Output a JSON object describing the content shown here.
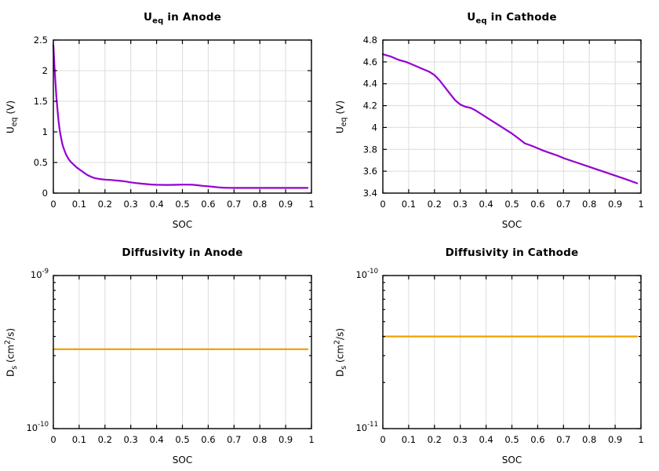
{
  "page": {
    "background": "#ffffff"
  },
  "colors": {
    "purple": "#9400d3",
    "orange": "#f0a202",
    "grid": "#dcdcdc",
    "axis": "#000000",
    "background": "#ffffff"
  },
  "chart_data": [
    {
      "type": "line",
      "title_text": "U_eq in Anode",
      "title": {
        "p1": "U",
        "sub": "eq",
        "p2": " in Anode"
      },
      "xlabel": "SOC",
      "ylabel_text": "U_eq (V)",
      "ylabel": {
        "p1": "U",
        "sub": "eq",
        "p2": " (V)",
        "sup": "",
        "p3": ""
      },
      "grid": true,
      "x": {
        "min": 0,
        "max": 1,
        "tick_values": [
          0,
          0.1,
          0.2,
          0.3,
          0.4,
          0.5,
          0.6,
          0.7,
          0.8,
          0.9,
          1
        ],
        "tick_labels": [
          "0",
          "0.1",
          "0.2",
          "0.3",
          "0.4",
          "0.5",
          "0.6",
          "0.7",
          "0.8",
          "0.9",
          "1"
        ]
      },
      "y": {
        "scale": "linear",
        "min": 0,
        "max": 2.5,
        "tick_values": [
          0,
          0.5,
          1,
          1.5,
          2,
          2.5
        ],
        "tick_labels": [
          "0",
          "0.5",
          "1",
          "1.5",
          "2",
          "2.5"
        ]
      },
      "series": [
        {
          "name": "equilibrium-potential-anode",
          "color_key": "purple",
          "points": [
            [
              0,
              2.42
            ],
            [
              0.004,
              2.1
            ],
            [
              0.008,
              1.82
            ],
            [
              0.012,
              1.56
            ],
            [
              0.016,
              1.36
            ],
            [
              0.02,
              1.18
            ],
            [
              0.025,
              1.02
            ],
            [
              0.03,
              0.9
            ],
            [
              0.035,
              0.8
            ],
            [
              0.04,
              0.73
            ],
            [
              0.05,
              0.62
            ],
            [
              0.06,
              0.55
            ],
            [
              0.07,
              0.5
            ],
            [
              0.08,
              0.46
            ],
            [
              0.09,
              0.42
            ],
            [
              0.1,
              0.39
            ],
            [
              0.11,
              0.36
            ],
            [
              0.12,
              0.33
            ],
            [
              0.13,
              0.3
            ],
            [
              0.14,
              0.28
            ],
            [
              0.15,
              0.26
            ],
            [
              0.16,
              0.245
            ],
            [
              0.18,
              0.23
            ],
            [
              0.2,
              0.22
            ],
            [
              0.22,
              0.215
            ],
            [
              0.24,
              0.208
            ],
            [
              0.26,
              0.2
            ],
            [
              0.28,
              0.19
            ],
            [
              0.3,
              0.176
            ],
            [
              0.32,
              0.164
            ],
            [
              0.34,
              0.155
            ],
            [
              0.36,
              0.147
            ],
            [
              0.38,
              0.14
            ],
            [
              0.4,
              0.136
            ],
            [
              0.42,
              0.134
            ],
            [
              0.44,
              0.133
            ],
            [
              0.46,
              0.134
            ],
            [
              0.48,
              0.136
            ],
            [
              0.5,
              0.139
            ],
            [
              0.52,
              0.139
            ],
            [
              0.54,
              0.136
            ],
            [
              0.56,
              0.128
            ],
            [
              0.58,
              0.118
            ],
            [
              0.6,
              0.112
            ],
            [
              0.62,
              0.102
            ],
            [
              0.64,
              0.093
            ],
            [
              0.66,
              0.088
            ],
            [
              0.68,
              0.086
            ],
            [
              0.7,
              0.085
            ],
            [
              0.75,
              0.084
            ],
            [
              0.8,
              0.084
            ],
            [
              0.85,
              0.084
            ],
            [
              0.9,
              0.084
            ],
            [
              0.95,
              0.084
            ],
            [
              0.985,
              0.084
            ]
          ]
        }
      ]
    },
    {
      "type": "line",
      "title_text": "U_eq in Cathode",
      "title": {
        "p1": "U",
        "sub": "eq",
        "p2": " in Cathode"
      },
      "xlabel": "SOC",
      "ylabel_text": "U_eq (V)",
      "ylabel": {
        "p1": "U",
        "sub": "eq",
        "p2": " (V)",
        "sup": "",
        "p3": ""
      },
      "grid": true,
      "x": {
        "min": 0,
        "max": 1,
        "tick_values": [
          0,
          0.1,
          0.2,
          0.3,
          0.4,
          0.5,
          0.6,
          0.7,
          0.8,
          0.9,
          1
        ],
        "tick_labels": [
          "0",
          "0.1",
          "0.2",
          "0.3",
          "0.4",
          "0.5",
          "0.6",
          "0.7",
          "0.8",
          "0.9",
          "1"
        ]
      },
      "y": {
        "scale": "linear",
        "min": 3.4,
        "max": 4.8,
        "tick_values": [
          3.4,
          3.6,
          3.8,
          4,
          4.2,
          4.4,
          4.6,
          4.8
        ],
        "tick_labels": [
          "3.4",
          "3.6",
          "3.8",
          "4",
          "4.2",
          "4.4",
          "4.6",
          "4.8"
        ]
      },
      "series": [
        {
          "name": "equilibrium-potential-cathode",
          "color_key": "purple",
          "points": [
            [
              0,
              4.67
            ],
            [
              0.03,
              4.65
            ],
            [
              0.06,
              4.62
            ],
            [
              0.09,
              4.6
            ],
            [
              0.12,
              4.57
            ],
            [
              0.15,
              4.54
            ],
            [
              0.18,
              4.51
            ],
            [
              0.2,
              4.48
            ],
            [
              0.22,
              4.43
            ],
            [
              0.24,
              4.37
            ],
            [
              0.26,
              4.31
            ],
            [
              0.28,
              4.25
            ],
            [
              0.3,
              4.21
            ],
            [
              0.32,
              4.19
            ],
            [
              0.34,
              4.18
            ],
            [
              0.36,
              4.155
            ],
            [
              0.38,
              4.125
            ],
            [
              0.4,
              4.095
            ],
            [
              0.42,
              4.065
            ],
            [
              0.44,
              4.035
            ],
            [
              0.46,
              4.005
            ],
            [
              0.48,
              3.975
            ],
            [
              0.5,
              3.945
            ],
            [
              0.52,
              3.91
            ],
            [
              0.55,
              3.855
            ],
            [
              0.58,
              3.83
            ],
            [
              0.6,
              3.81
            ],
            [
              0.62,
              3.79
            ],
            [
              0.65,
              3.765
            ],
            [
              0.68,
              3.74
            ],
            [
              0.7,
              3.72
            ],
            [
              0.75,
              3.68
            ],
            [
              0.8,
              3.64
            ],
            [
              0.85,
              3.6
            ],
            [
              0.9,
              3.56
            ],
            [
              0.95,
              3.52
            ],
            [
              0.985,
              3.49
            ]
          ]
        }
      ]
    },
    {
      "type": "line",
      "title_text": "Diffusivity in Anode",
      "title": {
        "p1": "Diffusivity in Anode",
        "sub": "",
        "p2": ""
      },
      "xlabel": "SOC",
      "ylabel_text": "D_s (cm^2/s)",
      "ylabel": {
        "p1": "D",
        "sub": "s",
        "p2": " (cm",
        "sup": "2",
        "p3": "/s)"
      },
      "grid": true,
      "x": {
        "min": 0,
        "max": 1,
        "tick_values": [
          0,
          0.1,
          0.2,
          0.3,
          0.4,
          0.5,
          0.6,
          0.7,
          0.8,
          0.9,
          1
        ],
        "tick_labels": [
          "0",
          "0.1",
          "0.2",
          "0.3",
          "0.4",
          "0.5",
          "0.6",
          "0.7",
          "0.8",
          "0.9",
          "1"
        ]
      },
      "y": {
        "scale": "log",
        "min_exp": -10,
        "max_exp": -9,
        "major_exps": [
          -10,
          -9
        ],
        "major_labels": [
          {
            "base": "10",
            "exp": "-10"
          },
          {
            "base": "10",
            "exp": "-9"
          }
        ],
        "minor_mults": [
          2,
          3,
          4,
          5,
          6,
          7,
          8,
          9
        ]
      },
      "series": [
        {
          "name": "diffusivity-anode",
          "color_key": "orange",
          "points": [
            [
              0,
              3.3e-10
            ],
            [
              0.985,
              3.3e-10
            ]
          ]
        }
      ]
    },
    {
      "type": "line",
      "title_text": "Diffusivity in Cathode",
      "title": {
        "p1": "Diffusivity in Cathode",
        "sub": "",
        "p2": ""
      },
      "xlabel": "SOC",
      "ylabel_text": "D_s (cm^2/s)",
      "ylabel": {
        "p1": "D",
        "sub": "s",
        "p2": " (cm",
        "sup": "2",
        "p3": "/s)"
      },
      "grid": true,
      "x": {
        "min": 0,
        "max": 1,
        "tick_values": [
          0,
          0.1,
          0.2,
          0.3,
          0.4,
          0.5,
          0.6,
          0.7,
          0.8,
          0.9,
          1
        ],
        "tick_labels": [
          "0",
          "0.1",
          "0.2",
          "0.3",
          "0.4",
          "0.5",
          "0.6",
          "0.7",
          "0.8",
          "0.9",
          "1"
        ]
      },
      "y": {
        "scale": "log",
        "min_exp": -11,
        "max_exp": -10,
        "major_exps": [
          -11,
          -10
        ],
        "major_labels": [
          {
            "base": "10",
            "exp": "-11"
          },
          {
            "base": "10",
            "exp": "-10"
          }
        ],
        "minor_mults": [
          2,
          3,
          4,
          5,
          6,
          7,
          8,
          9
        ]
      },
      "series": [
        {
          "name": "diffusivity-cathode",
          "color_key": "orange",
          "points": [
            [
              0,
              4e-11
            ],
            [
              0.985,
              4e-11
            ]
          ]
        }
      ]
    }
  ]
}
